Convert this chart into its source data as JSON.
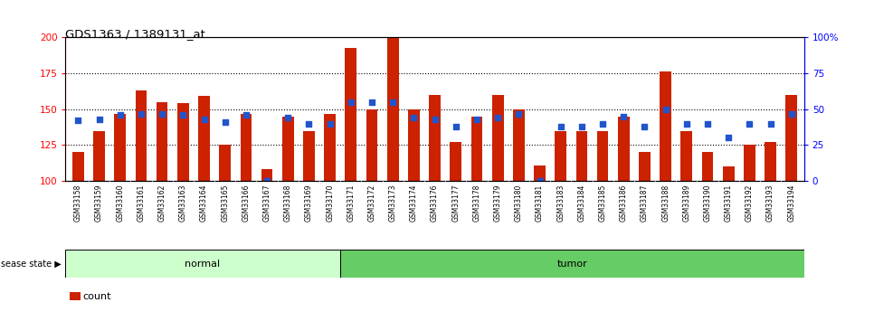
{
  "title": "GDS1363 / 1389131_at",
  "samples": [
    "GSM33158",
    "GSM33159",
    "GSM33160",
    "GSM33161",
    "GSM33162",
    "GSM33163",
    "GSM33164",
    "GSM33165",
    "GSM33166",
    "GSM33167",
    "GSM33168",
    "GSM33169",
    "GSM33170",
    "GSM33171",
    "GSM33172",
    "GSM33173",
    "GSM33174",
    "GSM33176",
    "GSM33177",
    "GSM33178",
    "GSM33179",
    "GSM33180",
    "GSM33181",
    "GSM33183",
    "GSM33184",
    "GSM33185",
    "GSM33186",
    "GSM33187",
    "GSM33188",
    "GSM33189",
    "GSM33190",
    "GSM33191",
    "GSM33192",
    "GSM33193",
    "GSM33194"
  ],
  "counts": [
    120,
    135,
    147,
    163,
    155,
    154,
    159,
    125,
    147,
    108,
    145,
    135,
    147,
    193,
    150,
    200,
    150,
    160,
    127,
    145,
    160,
    150,
    111,
    135,
    135,
    135,
    145,
    120,
    176,
    135,
    120,
    110,
    125,
    127,
    160
  ],
  "percentile_ranks": [
    42,
    43,
    46,
    47,
    47,
    46,
    43,
    41,
    46,
    0,
    44,
    40,
    40,
    55,
    55,
    55,
    44,
    43,
    38,
    43,
    44,
    47,
    0,
    38,
    38,
    40,
    45,
    38,
    50,
    40,
    40,
    30,
    40,
    40,
    47
  ],
  "group_counts": [
    13,
    22
  ],
  "normal_color": "#ccffcc",
  "tumor_color": "#66cc66",
  "bar_color": "#cc2200",
  "dot_color": "#2255cc",
  "ylim_left": [
    100,
    200
  ],
  "ylim_right": [
    0,
    100
  ],
  "yticks_left": [
    100,
    125,
    150,
    175,
    200
  ],
  "yticks_right": [
    0,
    25,
    50,
    75,
    100
  ],
  "plot_bg": "#ffffff",
  "xticklabel_bg": "#cccccc",
  "grid_color": "black"
}
